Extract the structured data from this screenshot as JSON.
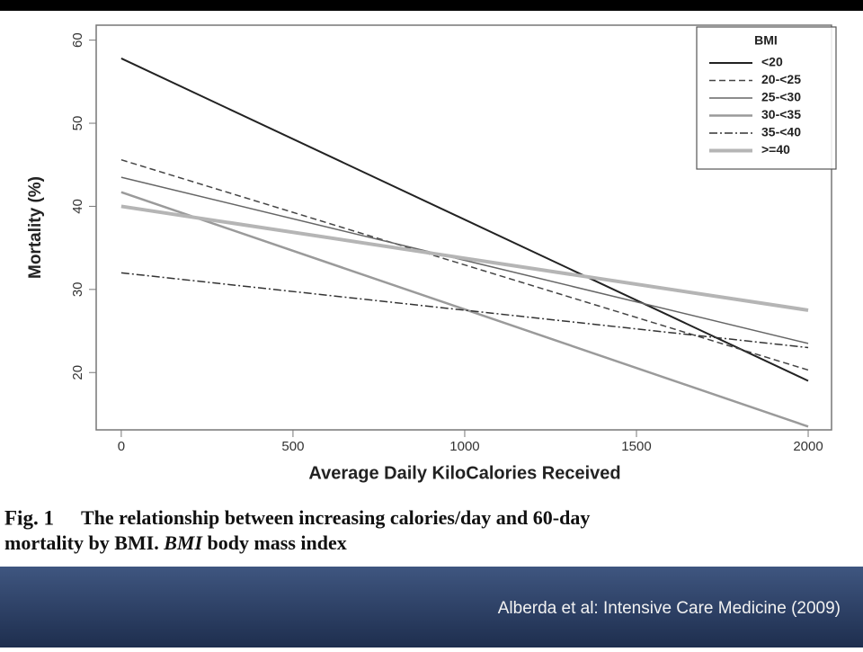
{
  "chart_data": {
    "type": "line",
    "xlabel": "Average Daily KiloCalories Received",
    "ylabel": "Mortality (%)",
    "x": [
      0,
      2000
    ],
    "series": [
      {
        "name": "<20",
        "color": "#222222",
        "width": 2,
        "dash": "none",
        "values": [
          57.8,
          19.0
        ]
      },
      {
        "name": "20-<25",
        "color": "#444444",
        "width": 1.5,
        "dash": "7 4",
        "values": [
          45.6,
          20.3
        ]
      },
      {
        "name": "25-<30",
        "color": "#666666",
        "width": 1.5,
        "dash": "none",
        "values": [
          43.5,
          23.5
        ]
      },
      {
        "name": "30-<35",
        "color": "#9a9a9a",
        "width": 2.5,
        "dash": "none",
        "values": [
          41.7,
          13.5
        ]
      },
      {
        "name": "35-<40",
        "color": "#333333",
        "width": 1.5,
        "dash": "9 3 2 3",
        "values": [
          32.0,
          23.0
        ]
      },
      {
        "name": ">=40",
        "color": "#b5b5b5",
        "width": 4,
        "dash": "none",
        "values": [
          40.0,
          27.5
        ]
      }
    ],
    "legend_title": "BMI",
    "legend": "top-right",
    "xlim": [
      -73,
      2068
    ],
    "xticks": [
      0,
      500,
      1000,
      1500,
      2000
    ],
    "ylim": [
      13.1,
      61.8
    ],
    "yticks": [
      20,
      30,
      40,
      50,
      60
    ]
  },
  "caption": {
    "label": "Fig. 1",
    "line1": "The relationship between increasing calories/day and 60-day",
    "line2": "mortality by BMI.",
    "abbr": "BMI",
    "abbr_def": "body mass index"
  },
  "citation": "Alberda et al: Intensive Care Medicine (2009)"
}
